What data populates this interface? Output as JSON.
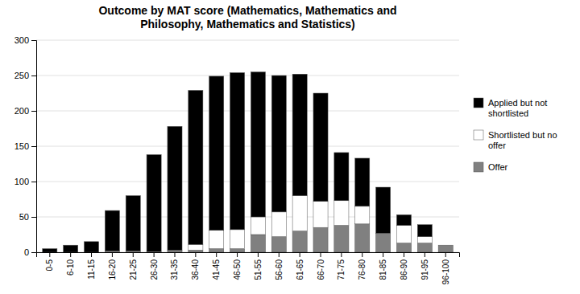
{
  "chart_data": {
    "type": "bar",
    "title": "Outcome by MAT score (Mathematics, Mathematics and\nPhilosophy, Mathematics and Statistics)",
    "categories": [
      "0-5",
      "6-10",
      "11-15",
      "16-20",
      "21-25",
      "26-30",
      "31-35",
      "36-40",
      "41-45",
      "46-50",
      "51-55",
      "56-60",
      "61-65",
      "66-70",
      "71-75",
      "76-80",
      "81-85",
      "86-90",
      "91-95",
      "96-100"
    ],
    "series": [
      {
        "name": "Offer",
        "color": "#808080",
        "values": [
          0,
          0,
          0,
          2,
          2,
          1,
          3,
          3,
          5,
          5,
          25,
          22,
          30,
          35,
          38,
          40,
          27,
          13,
          13,
          10
        ]
      },
      {
        "name": "Shortlisted but no\noffer",
        "color": "#ffffff",
        "values": [
          0,
          0,
          0,
          0,
          0,
          0,
          0,
          8,
          26,
          27,
          25,
          35,
          50,
          37,
          35,
          25,
          0,
          25,
          9,
          0
        ]
      },
      {
        "name": "Applied but not\nshortlisted",
        "color": "#000000",
        "values": [
          5,
          10,
          15,
          57,
          78,
          137,
          175,
          218,
          218,
          222,
          205,
          193,
          172,
          153,
          68,
          68,
          65,
          15,
          17,
          0
        ]
      }
    ],
    "stacked": true,
    "ylim": [
      0,
      300
    ],
    "yticks": [
      0,
      50,
      100,
      150,
      200,
      250,
      300
    ],
    "grid": true,
    "legend": "right"
  }
}
